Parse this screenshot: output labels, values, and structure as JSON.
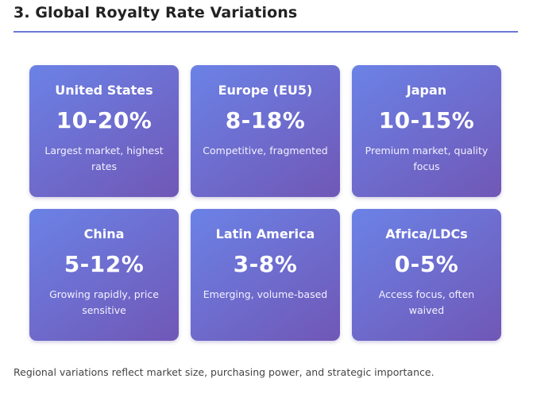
{
  "section": {
    "title": "3. Global Royalty Rate Variations"
  },
  "cards": [
    {
      "region": "United States",
      "rate": "10-20%",
      "note": "Largest market, highest rates"
    },
    {
      "region": "Europe (EU5)",
      "rate": "8-18%",
      "note": "Competitive, fragmented"
    },
    {
      "region": "Japan",
      "rate": "10-15%",
      "note": "Premium market, quality focus"
    },
    {
      "region": "China",
      "rate": "5-12%",
      "note": "Growing rapidly, price sensitive"
    },
    {
      "region": "Latin America",
      "rate": "3-8%",
      "note": "Emerging, volume-based"
    },
    {
      "region": "Africa/LDCs",
      "rate": "0-5%",
      "note": "Access focus, often waived"
    }
  ],
  "footer": {
    "text": "Regional variations reflect market size, purchasing power, and strategic importance."
  },
  "colors": {
    "card_gradient_start": "#6b82e6",
    "card_gradient_end": "#7057b6",
    "heading_rule": "#6a78d6"
  }
}
